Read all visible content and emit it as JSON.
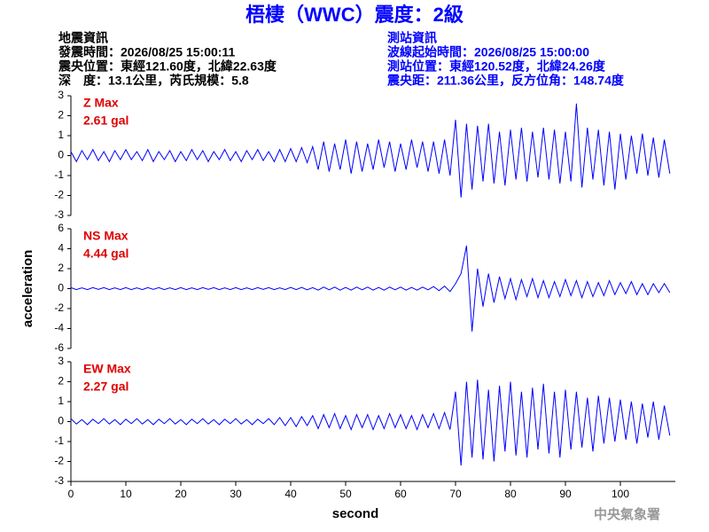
{
  "header": {
    "title": "梧棲（WWC）震度：2級",
    "left": [
      "地震資訊",
      "發震時間：2026/08/25 15:00:11",
      "震央位置：東經121.60度，北緯22.63度",
      "深　度：13.1公里，芮氏規模：5.8"
    ],
    "right": [
      "測站資訊",
      "波線起始時間：2026/08/25 15:00:00",
      "測站位置：東經120.52度，北緯24.26度",
      "震央距：211.36公里，反方位角：148.74度"
    ]
  },
  "footer": "中央氣象署",
  "chart_data": [
    {
      "type": "line",
      "annotations": [
        "Z Max",
        "2.61 gal"
      ],
      "color": "#0000ff",
      "xlim": [
        0,
        110
      ],
      "ylim": [
        -3,
        3
      ],
      "yticks": [
        -3,
        -2,
        -1,
        0,
        1,
        2,
        3
      ],
      "x": [
        0,
        1,
        2,
        3,
        4,
        5,
        6,
        7,
        8,
        9,
        10,
        11,
        12,
        13,
        14,
        15,
        16,
        17,
        18,
        19,
        20,
        21,
        22,
        23,
        24,
        25,
        26,
        27,
        28,
        29,
        30,
        31,
        32,
        33,
        34,
        35,
        36,
        37,
        38,
        39,
        40,
        41,
        42,
        43,
        44,
        45,
        46,
        47,
        48,
        49,
        50,
        51,
        52,
        53,
        54,
        55,
        56,
        57,
        58,
        59,
        60,
        61,
        62,
        63,
        64,
        65,
        66,
        67,
        68,
        69,
        70,
        71,
        72,
        73,
        74,
        75,
        76,
        77,
        78,
        79,
        80,
        81,
        82,
        83,
        84,
        85,
        86,
        87,
        88,
        89,
        90,
        91,
        92,
        93,
        94,
        95,
        96,
        97,
        98,
        99,
        100,
        101,
        102,
        103,
        104,
        105,
        106,
        107,
        108,
        109
      ],
      "values": [
        0.2,
        -0.3,
        0.25,
        -0.2,
        0.3,
        -0.25,
        0.2,
        -0.3,
        0.25,
        -0.2,
        0.3,
        -0.2,
        0.2,
        -0.25,
        0.3,
        -0.3,
        0.2,
        -0.2,
        0.25,
        -0.3,
        0.2,
        -0.25,
        0.3,
        -0.2,
        0.25,
        -0.3,
        0.2,
        -0.2,
        0.3,
        -0.25,
        0.2,
        -0.3,
        0.25,
        -0.2,
        0.3,
        -0.25,
        0.2,
        -0.3,
        0.3,
        -0.3,
        0.35,
        -0.3,
        0.4,
        -0.35,
        0.45,
        -0.7,
        0.7,
        -0.8,
        0.6,
        -0.7,
        0.8,
        -0.9,
        0.7,
        -0.8,
        0.6,
        -0.7,
        0.8,
        -0.6,
        0.7,
        -0.8,
        0.6,
        -0.7,
        0.8,
        -0.6,
        0.7,
        -0.8,
        0.7,
        -0.9,
        0.8,
        -1.0,
        1.8,
        -2.1,
        1.6,
        -1.7,
        1.5,
        -1.3,
        1.6,
        -1.4,
        1.2,
        -1.5,
        1.3,
        -1.2,
        1.4,
        -1.3,
        1.2,
        -1.1,
        1.4,
        -1.2,
        1.3,
        -1.4,
        1.2,
        -1.3,
        2.61,
        -1.6,
        1.4,
        -1.2,
        1.3,
        -1.5,
        1.2,
        -1.7,
        1.1,
        -1.2,
        1.0,
        -0.9,
        1.1,
        -1.0,
        0.9,
        -1.1,
        0.8,
        -0.9
      ]
    },
    {
      "type": "line",
      "annotations": [
        "NS Max",
        "4.44 gal"
      ],
      "ylabel": "acceleration",
      "color": "#0000ff",
      "xlim": [
        0,
        110
      ],
      "ylim": [
        -6,
        6
      ],
      "yticks": [
        -6,
        -4,
        -2,
        0,
        2,
        4,
        6
      ],
      "x": [
        0,
        1,
        2,
        3,
        4,
        5,
        6,
        7,
        8,
        9,
        10,
        11,
        12,
        13,
        14,
        15,
        16,
        17,
        18,
        19,
        20,
        21,
        22,
        23,
        24,
        25,
        26,
        27,
        28,
        29,
        30,
        31,
        32,
        33,
        34,
        35,
        36,
        37,
        38,
        39,
        40,
        41,
        42,
        43,
        44,
        45,
        46,
        47,
        48,
        49,
        50,
        51,
        52,
        53,
        54,
        55,
        56,
        57,
        58,
        59,
        60,
        61,
        62,
        63,
        64,
        65,
        66,
        67,
        68,
        69,
        70,
        71,
        72,
        73,
        74,
        75,
        76,
        77,
        78,
        79,
        80,
        81,
        82,
        83,
        84,
        85,
        86,
        87,
        88,
        89,
        90,
        91,
        92,
        93,
        94,
        95,
        96,
        97,
        98,
        99,
        100,
        101,
        102,
        103,
        104,
        105,
        106,
        107,
        108,
        109
      ],
      "values": [
        0.1,
        -0.1,
        0.08,
        -0.1,
        0.1,
        -0.08,
        0.1,
        -0.1,
        0.08,
        -0.1,
        0.1,
        -0.1,
        0.08,
        -0.1,
        0.1,
        -0.08,
        0.1,
        -0.1,
        0.08,
        -0.1,
        0.1,
        -0.1,
        0.08,
        -0.1,
        0.1,
        -0.08,
        0.1,
        -0.1,
        0.08,
        -0.1,
        0.1,
        -0.1,
        0.08,
        -0.1,
        0.1,
        -0.08,
        0.1,
        -0.1,
        0.08,
        -0.1,
        0.12,
        -0.1,
        0.12,
        -0.12,
        0.1,
        -0.15,
        0.15,
        -0.12,
        0.15,
        -0.15,
        0.12,
        -0.15,
        0.15,
        -0.12,
        0.15,
        -0.15,
        0.12,
        -0.15,
        0.15,
        -0.12,
        0.15,
        -0.15,
        0.12,
        -0.15,
        0.15,
        -0.12,
        0.2,
        -0.2,
        0.25,
        -0.3,
        0.5,
        1.5,
        4.3,
        -4.3,
        2.0,
        -1.8,
        1.5,
        -1.4,
        1.2,
        -1.0,
        1.0,
        -1.1,
        0.9,
        -0.8,
        1.0,
        -0.9,
        0.8,
        -0.9,
        0.7,
        -0.8,
        0.9,
        -0.7,
        0.8,
        -0.9,
        0.7,
        -0.8,
        0.6,
        -0.7,
        0.8,
        -0.6,
        0.6,
        -0.5,
        0.7,
        -0.6,
        0.5,
        -0.6,
        0.5,
        -0.4,
        0.5,
        -0.4
      ]
    },
    {
      "type": "line",
      "annotations": [
        "EW Max",
        "2.27 gal"
      ],
      "xlabel": "second",
      "color": "#0000ff",
      "xlim": [
        0,
        110
      ],
      "ylim": [
        -3,
        3
      ],
      "yticks": [
        -3,
        -2,
        -1,
        0,
        1,
        2,
        3
      ],
      "xticks": [
        0,
        10,
        20,
        30,
        40,
        50,
        60,
        70,
        80,
        90,
        100
      ],
      "x": [
        0,
        1,
        2,
        3,
        4,
        5,
        6,
        7,
        8,
        9,
        10,
        11,
        12,
        13,
        14,
        15,
        16,
        17,
        18,
        19,
        20,
        21,
        22,
        23,
        24,
        25,
        26,
        27,
        28,
        29,
        30,
        31,
        32,
        33,
        34,
        35,
        36,
        37,
        38,
        39,
        40,
        41,
        42,
        43,
        44,
        45,
        46,
        47,
        48,
        49,
        50,
        51,
        52,
        53,
        54,
        55,
        56,
        57,
        58,
        59,
        60,
        61,
        62,
        63,
        64,
        65,
        66,
        67,
        68,
        69,
        70,
        71,
        72,
        73,
        74,
        75,
        76,
        77,
        78,
        79,
        80,
        81,
        82,
        83,
        84,
        85,
        86,
        87,
        88,
        89,
        90,
        91,
        92,
        93,
        94,
        95,
        96,
        97,
        98,
        99,
        100,
        101,
        102,
        103,
        104,
        105,
        106,
        107,
        108,
        109
      ],
      "values": [
        0.15,
        -0.12,
        0.1,
        -0.15,
        0.12,
        -0.1,
        0.15,
        -0.12,
        0.1,
        -0.15,
        0.12,
        -0.1,
        0.15,
        -0.12,
        0.1,
        -0.15,
        0.12,
        -0.1,
        0.15,
        -0.12,
        0.1,
        -0.15,
        0.12,
        -0.1,
        0.15,
        -0.12,
        0.1,
        -0.15,
        0.12,
        -0.1,
        0.15,
        -0.12,
        0.1,
        -0.15,
        0.12,
        -0.1,
        0.15,
        -0.15,
        0.2,
        -0.2,
        0.2,
        -0.25,
        0.25,
        -0.2,
        0.3,
        -0.35,
        0.35,
        -0.3,
        0.4,
        -0.35,
        0.3,
        -0.4,
        0.35,
        -0.3,
        0.35,
        -0.4,
        0.3,
        -0.35,
        0.4,
        -0.3,
        0.35,
        -0.35,
        0.3,
        -0.4,
        0.35,
        -0.3,
        0.4,
        -0.35,
        0.45,
        -0.4,
        1.5,
        -2.2,
        2.0,
        -1.8,
        2.1,
        -1.9,
        1.6,
        -2.0,
        1.8,
        -1.5,
        2.0,
        -1.7,
        1.5,
        -1.8,
        1.7,
        -1.4,
        1.9,
        -1.6,
        1.5,
        -1.8,
        1.6,
        -1.4,
        1.5,
        -1.3,
        1.2,
        -1.5,
        1.3,
        -1.1,
        1.2,
        -1.0,
        1.1,
        -0.9,
        1.0,
        -1.1,
        0.9,
        -0.8,
        1.0,
        -0.9,
        0.8,
        -0.7
      ]
    }
  ]
}
